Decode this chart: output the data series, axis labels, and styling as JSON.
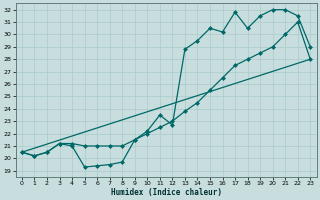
{
  "title": "",
  "xlabel": "Humidex (Indice chaleur)",
  "ylabel": "",
  "bg_color": "#c8dede",
  "grid_color": "#b0cece",
  "line_color": "#006868",
  "xlim": [
    -0.5,
    23.5
  ],
  "ylim": [
    18.5,
    32.5
  ],
  "xticks": [
    0,
    1,
    2,
    3,
    4,
    5,
    6,
    7,
    8,
    9,
    10,
    11,
    12,
    13,
    14,
    15,
    16,
    17,
    18,
    19,
    20,
    21,
    22,
    23
  ],
  "yticks": [
    19,
    20,
    21,
    22,
    23,
    24,
    25,
    26,
    27,
    28,
    29,
    30,
    31,
    32
  ],
  "line1_x": [
    0,
    1,
    2,
    3,
    4,
    5,
    6,
    7,
    8,
    9,
    10,
    11,
    12,
    13,
    14,
    15,
    16,
    17,
    18,
    19,
    20,
    21,
    22,
    23
  ],
  "line1_y": [
    20.5,
    20.2,
    20.5,
    21.2,
    21.2,
    21.0,
    21.0,
    21.0,
    21.0,
    21.5,
    22.0,
    22.5,
    23.0,
    23.8,
    24.5,
    25.5,
    26.5,
    27.5,
    28.0,
    28.5,
    29.0,
    30.0,
    31.0,
    28.0
  ],
  "line2_x": [
    0,
    1,
    2,
    3,
    4,
    5,
    6,
    7,
    8,
    9,
    10,
    11,
    12,
    13,
    14,
    15,
    16,
    17,
    18,
    19,
    20,
    21,
    22,
    23
  ],
  "line2_y": [
    20.5,
    20.2,
    20.5,
    21.2,
    21.0,
    19.3,
    19.4,
    19.5,
    19.7,
    21.5,
    22.2,
    23.5,
    22.7,
    28.8,
    29.5,
    30.5,
    30.2,
    31.8,
    30.5,
    31.5,
    32.0,
    32.0,
    31.5,
    29.0
  ],
  "line3_x": [
    0,
    23
  ],
  "line3_y": [
    20.5,
    28.0
  ],
  "marker": "D",
  "markersize": 2.5,
  "linewidth": 0.9
}
